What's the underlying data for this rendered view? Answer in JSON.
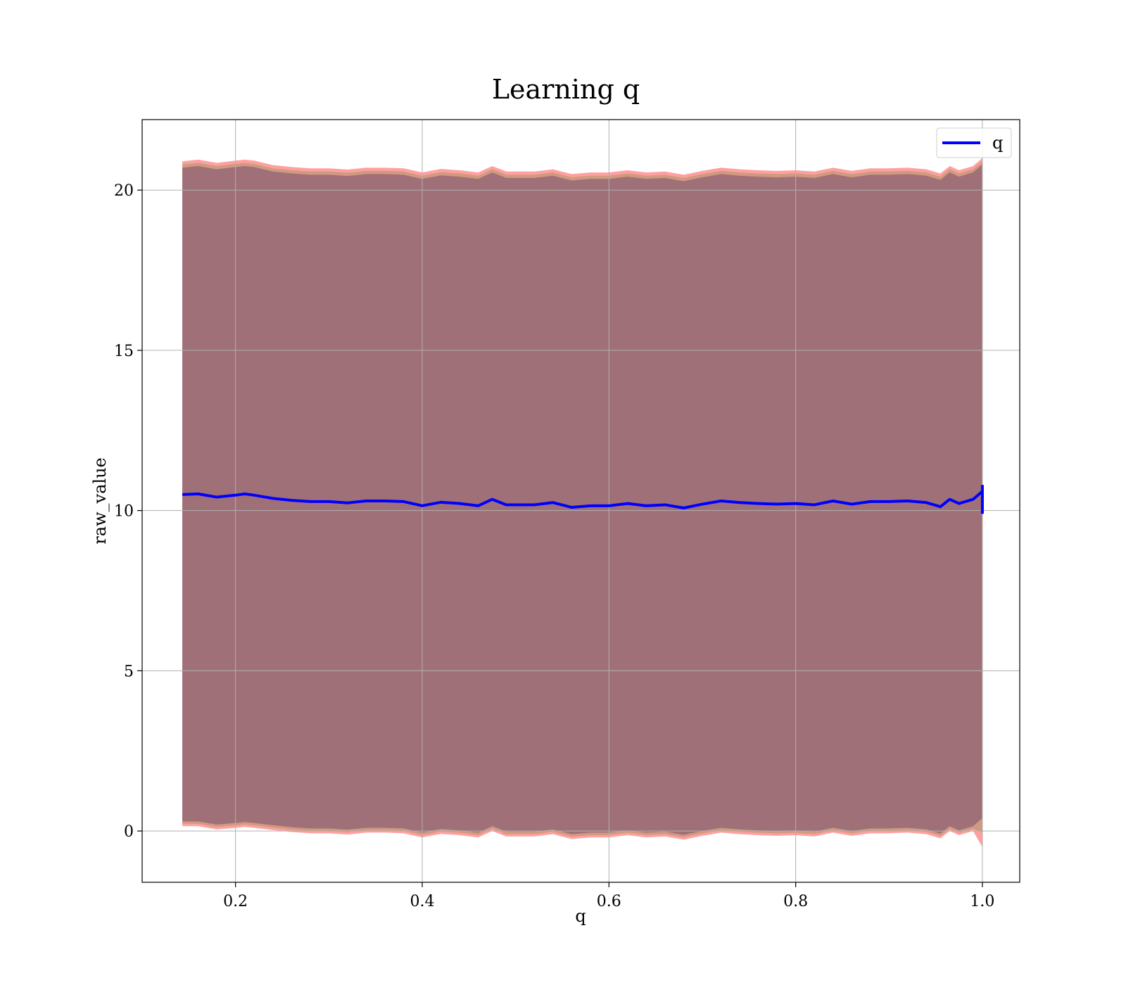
{
  "chart_data": {
    "type": "line",
    "title": "Learning q",
    "xlabel": "q",
    "ylabel": "raw_value",
    "xlim": [
      0.1,
      1.04
    ],
    "ylim": [
      -1.6,
      22.2
    ],
    "xticks": [
      0.2,
      0.4,
      0.6,
      0.8,
      1.0
    ],
    "xtick_labels": [
      "0.2",
      "0.4",
      "0.6",
      "0.8",
      "1.0"
    ],
    "yticks": [
      0,
      5,
      10,
      15,
      20
    ],
    "ytick_labels": [
      "0",
      "5",
      "10",
      "15",
      "20"
    ],
    "grid": true,
    "legend": {
      "position": "upper right",
      "entries": [
        "q"
      ]
    },
    "colors": {
      "line": "#0000ff",
      "band_outer": "#ffa0a0",
      "band_mid": "#d09a80",
      "band_inner": "#a07078",
      "grid": "#b0b0b0"
    },
    "series": [
      {
        "name": "q",
        "x": [
          0.143,
          0.16,
          0.18,
          0.2,
          0.21,
          0.22,
          0.24,
          0.26,
          0.28,
          0.3,
          0.32,
          0.34,
          0.36,
          0.38,
          0.4,
          0.42,
          0.44,
          0.46,
          0.475,
          0.49,
          0.52,
          0.54,
          0.56,
          0.58,
          0.6,
          0.62,
          0.64,
          0.66,
          0.68,
          0.7,
          0.72,
          0.74,
          0.76,
          0.78,
          0.8,
          0.82,
          0.84,
          0.86,
          0.88,
          0.9,
          0.92,
          0.94,
          0.955,
          0.965,
          0.975,
          0.99,
          1.0
        ],
        "y": [
          10.5,
          10.52,
          10.42,
          10.48,
          10.52,
          10.48,
          10.38,
          10.32,
          10.28,
          10.28,
          10.24,
          10.3,
          10.3,
          10.28,
          10.15,
          10.26,
          10.22,
          10.15,
          10.35,
          10.18,
          10.18,
          10.25,
          10.1,
          10.15,
          10.15,
          10.22,
          10.15,
          10.18,
          10.08,
          10.2,
          10.3,
          10.25,
          10.22,
          10.2,
          10.22,
          10.18,
          10.3,
          10.2,
          10.28,
          10.28,
          10.3,
          10.25,
          10.12,
          10.35,
          10.22,
          10.35,
          10.6
        ]
      }
    ],
    "band": {
      "inner_upper": [
        20.7,
        20.75,
        20.65,
        20.72,
        20.75,
        20.72,
        20.58,
        20.52,
        20.48,
        20.48,
        20.44,
        20.5,
        20.5,
        20.48,
        20.35,
        20.46,
        20.42,
        20.35,
        20.55,
        20.38,
        20.38,
        20.45,
        20.3,
        20.35,
        20.35,
        20.42,
        20.35,
        20.38,
        20.28,
        20.4,
        20.5,
        20.45,
        20.42,
        20.4,
        20.42,
        20.38,
        20.5,
        20.4,
        20.48,
        20.48,
        20.5,
        20.45,
        20.32,
        20.55,
        20.42,
        20.55,
        20.8
      ],
      "inner_lower": [
        0.3,
        0.3,
        0.2,
        0.25,
        0.28,
        0.25,
        0.18,
        0.12,
        0.08,
        0.08,
        0.04,
        0.1,
        0.1,
        0.08,
        -0.05,
        0.06,
        0.02,
        -0.05,
        0.15,
        -0.02,
        -0.02,
        0.05,
        -0.1,
        -0.05,
        -0.05,
        0.02,
        -0.05,
        -0.02,
        -0.12,
        0.0,
        0.1,
        0.05,
        0.02,
        0.0,
        0.02,
        -0.02,
        0.1,
        0.0,
        0.08,
        0.08,
        0.1,
        0.05,
        -0.08,
        0.15,
        0.02,
        0.15,
        0.4
      ],
      "outer_upper": [
        20.9,
        20.95,
        20.85,
        20.92,
        20.95,
        20.92,
        20.78,
        20.72,
        20.68,
        20.68,
        20.64,
        20.7,
        20.7,
        20.68,
        20.55,
        20.66,
        20.62,
        20.55,
        20.75,
        20.58,
        20.58,
        20.65,
        20.5,
        20.55,
        20.55,
        20.62,
        20.55,
        20.58,
        20.48,
        20.6,
        20.7,
        20.65,
        20.62,
        20.6,
        20.62,
        20.58,
        20.7,
        20.6,
        20.68,
        20.68,
        20.7,
        20.65,
        20.52,
        20.75,
        20.62,
        20.75,
        21.0
      ],
      "outer_lower": [
        0.15,
        0.15,
        0.05,
        0.1,
        0.13,
        0.1,
        0.03,
        -0.03,
        -0.07,
        -0.07,
        -0.11,
        -0.05,
        -0.05,
        -0.07,
        -0.2,
        -0.09,
        -0.13,
        -0.2,
        0.0,
        -0.17,
        -0.17,
        -0.1,
        -0.25,
        -0.2,
        -0.2,
        -0.13,
        -0.2,
        -0.17,
        -0.27,
        -0.15,
        -0.05,
        -0.1,
        -0.13,
        -0.15,
        -0.13,
        -0.17,
        -0.05,
        -0.15,
        -0.07,
        -0.07,
        -0.05,
        -0.1,
        -0.23,
        0.0,
        -0.13,
        0.0,
        -0.5
      ]
    }
  }
}
